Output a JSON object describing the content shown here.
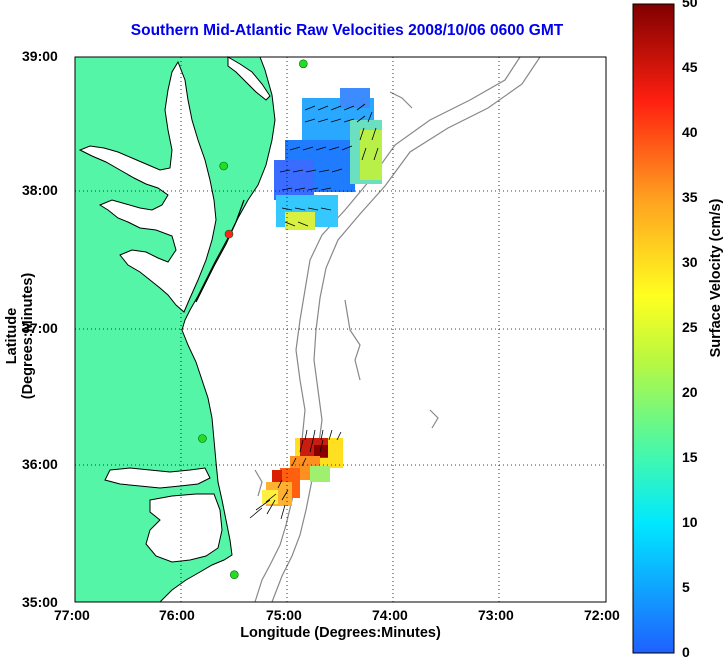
{
  "title": "Southern Mid-Atlantic Raw Velocities 2008/10/06 0600 GMT",
  "xlabel": "Longitude (Degrees:Minutes)",
  "ylabel": "Latitude (Degrees:Minutes)",
  "colorbar": {
    "label": "Surface Velocity (cm/s)",
    "ticks": [
      "0",
      "5",
      "10",
      "15",
      "20",
      "25",
      "30",
      "35",
      "40",
      "45",
      "50"
    ],
    "range": [
      0,
      50
    ]
  },
  "axes": {
    "x_ticks": [
      "77:00",
      "76:00",
      "75:00",
      "74:00",
      "73:00",
      "72:00"
    ],
    "y_ticks": [
      "39:00",
      "38:00",
      "37:00",
      "36:00",
      "35:00"
    ]
  },
  "colors": {
    "land": "#55f5a8",
    "coast": "#000000",
    "bathymetry": "#888888",
    "title": "#0000ee"
  },
  "stations": [
    {
      "lon": -74.85,
      "lat": 38.95,
      "color": "#22dd22"
    },
    {
      "lon": -75.6,
      "lat": 38.2,
      "color": "#22dd22"
    },
    {
      "lon": -75.55,
      "lat": 37.7,
      "color": "#ff2222"
    },
    {
      "lon": -75.8,
      "lat": 36.2,
      "color": "#22dd22"
    },
    {
      "lon": -75.5,
      "lat": 35.2,
      "color": "#22dd22"
    }
  ],
  "grid": "dotted"
}
